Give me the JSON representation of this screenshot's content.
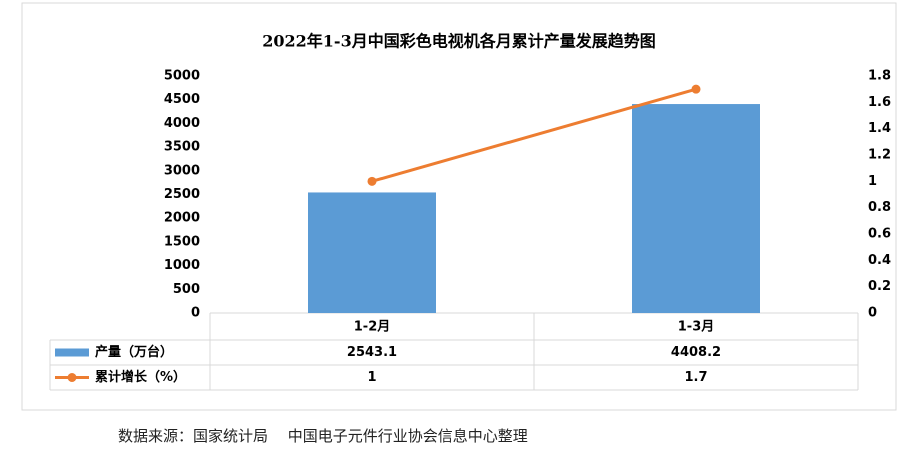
{
  "chart_data": {
    "type": "bar-line-table",
    "title": "2022年1-3月中国彩色电视机各月累计产量发展趋势图",
    "categories": [
      "1-2月",
      "1-3月"
    ],
    "series": [
      {
        "name": "产量（万台）",
        "type": "bar",
        "color": "#5b9bd5",
        "values": [
          2543.1,
          4408.2
        ]
      },
      {
        "name": "累计增长（%）",
        "type": "line",
        "axis": "y2",
        "color": "#ed7d31",
        "values": [
          1,
          1.7
        ]
      }
    ],
    "ylim": [
      0,
      5000
    ],
    "yticks": [
      0,
      500,
      1000,
      1500,
      2000,
      2500,
      3000,
      3500,
      4000,
      4500,
      5000
    ],
    "y2lim": [
      0,
      1.8
    ],
    "y2ticks": [
      0,
      0.2,
      0.4,
      0.6,
      0.8,
      1,
      1.2,
      1.4,
      1.6,
      1.8
    ],
    "source": "数据来源：国家统计局　 中国电子元件行业协会信息中心整理"
  }
}
